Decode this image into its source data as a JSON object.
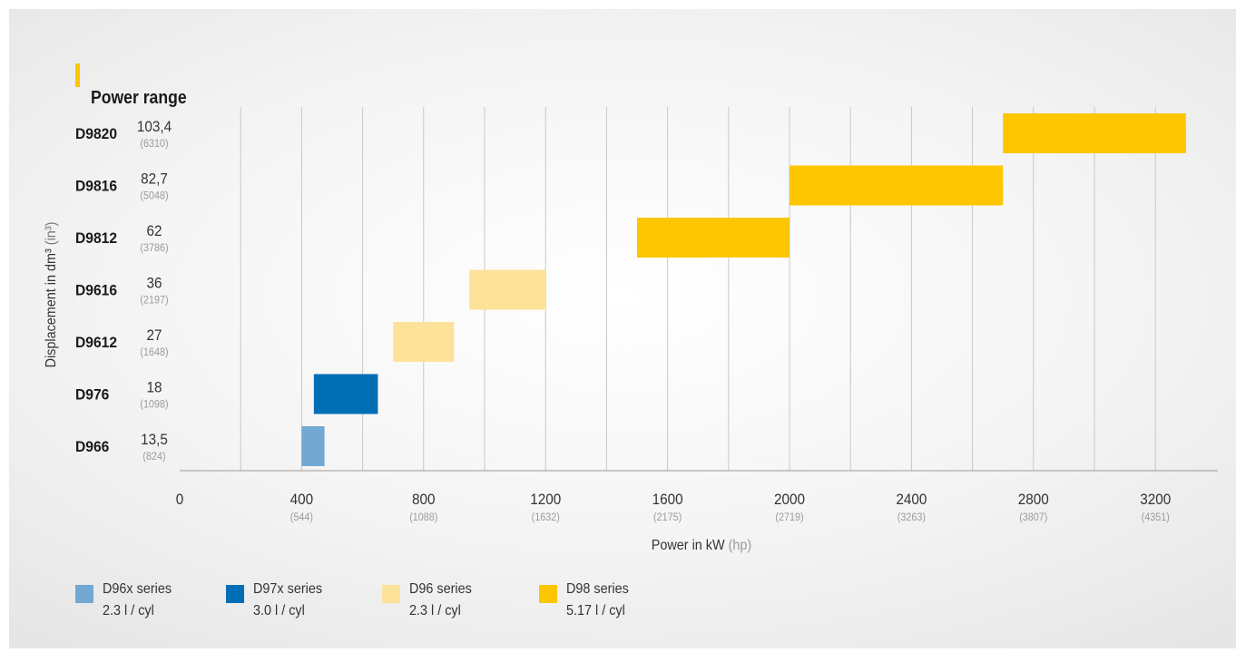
{
  "chart_data": {
    "type": "bar",
    "title": "Power range",
    "xlabel": "Power in kW",
    "xlabel_unit_alt": "(hp)",
    "ylabel": "Displacement in dm³",
    "ylabel_unit_alt": "(in³)",
    "xlim": [
      0,
      3350
    ],
    "grid": "vertical",
    "x_ticks": [
      {
        "kw": "0",
        "hp": ""
      },
      {
        "kw": "400",
        "hp": "(544)"
      },
      {
        "kw": "800",
        "hp": "(1088)"
      },
      {
        "kw": "1200",
        "hp": "(1632)"
      },
      {
        "kw": "1600",
        "hp": "(2175)"
      },
      {
        "kw": "2000",
        "hp": "(2719)"
      },
      {
        "kw": "2400",
        "hp": "(3263)"
      },
      {
        "kw": "2800",
        "hp": "(3807)"
      },
      {
        "kw": "3200",
        "hp": "(4351)"
      }
    ],
    "categories": [
      "D9820",
      "D9816",
      "D9812",
      "D9616",
      "D9612",
      "D976",
      "D966"
    ],
    "displacement_dm3": [
      "103,4",
      "82,7",
      "62",
      "36",
      "27",
      "18",
      "13,5"
    ],
    "displacement_in3": [
      "(6310)",
      "(5048)",
      "(3786)",
      "(2197)",
      "(1648)",
      "(1098)",
      "(824)"
    ],
    "ranges": [
      {
        "engine": "D9820",
        "min_kw": 2700,
        "max_kw": 3300,
        "series": "D98 series"
      },
      {
        "engine": "D9816",
        "min_kw": 2000,
        "max_kw": 2700,
        "series": "D98 series"
      },
      {
        "engine": "D9812",
        "min_kw": 1500,
        "max_kw": 2000,
        "series": "D98 series"
      },
      {
        "engine": "D9616",
        "min_kw": 950,
        "max_kw": 1200,
        "series": "D96 series"
      },
      {
        "engine": "D9612",
        "min_kw": 700,
        "max_kw": 900,
        "series": "D96 series"
      },
      {
        "engine": "D976",
        "min_kw": 440,
        "max_kw": 650,
        "series": "D97x series"
      },
      {
        "engine": "D966",
        "min_kw": 400,
        "max_kw": 475,
        "series": "D96x series"
      }
    ],
    "series": [
      {
        "name": "D96x series",
        "detail": "2.3 l / cyl",
        "color": "#72a8d2"
      },
      {
        "name": "D97x series",
        "detail": "3.0 l / cyl",
        "color": "#006eb4"
      },
      {
        "name": "D96 series",
        "detail": "2.3 l / cyl",
        "color": "#fde29a"
      },
      {
        "name": "D98 series",
        "detail": "5.17 l / cyl",
        "color": "#fcc600"
      }
    ],
    "legend_position": "bottom-left"
  }
}
